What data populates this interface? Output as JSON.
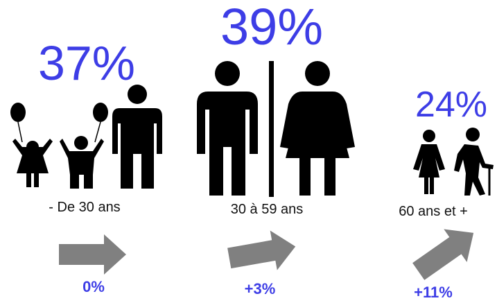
{
  "groups": [
    {
      "share": "37%",
      "label": "- De 30 ans",
      "change": "0%"
    },
    {
      "share": "39%",
      "label": "30 à 59 ans",
      "change": "+3%"
    },
    {
      "share": "24%",
      "label": "60 ans et +",
      "change": "+11%"
    }
  ]
}
